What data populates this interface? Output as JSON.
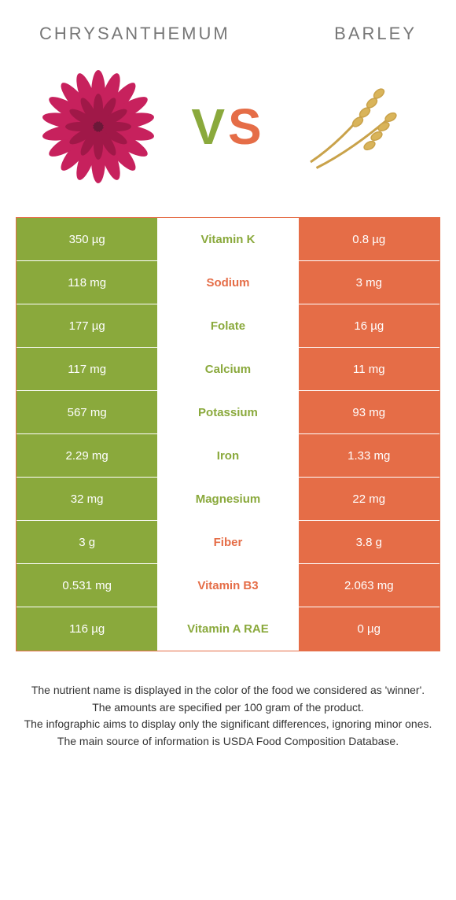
{
  "food_left": {
    "name": "Chrysanthemum"
  },
  "food_right": {
    "name": "Barley"
  },
  "vs_text": {
    "v": "V",
    "s": "S"
  },
  "colors": {
    "left": "#8aa93c",
    "right": "#e56d47",
    "title": "#777777",
    "bg": "#ffffff"
  },
  "rows": [
    {
      "nutrient": "Vitamin K",
      "left": "350 µg",
      "right": "0.8 µg",
      "winner": "left"
    },
    {
      "nutrient": "Sodium",
      "left": "118 mg",
      "right": "3 mg",
      "winner": "right"
    },
    {
      "nutrient": "Folate",
      "left": "177 µg",
      "right": "16 µg",
      "winner": "left"
    },
    {
      "nutrient": "Calcium",
      "left": "117 mg",
      "right": "11 mg",
      "winner": "left"
    },
    {
      "nutrient": "Potassium",
      "left": "567 mg",
      "right": "93 mg",
      "winner": "left"
    },
    {
      "nutrient": "Iron",
      "left": "2.29 mg",
      "right": "1.33 mg",
      "winner": "left"
    },
    {
      "nutrient": "Magnesium",
      "left": "32 mg",
      "right": "22 mg",
      "winner": "left"
    },
    {
      "nutrient": "Fiber",
      "left": "3 g",
      "right": "3.8 g",
      "winner": "right"
    },
    {
      "nutrient": "Vitamin B3",
      "left": "0.531 mg",
      "right": "2.063 mg",
      "winner": "right"
    },
    {
      "nutrient": "Vitamin A RAE",
      "left": "116 µg",
      "right": "0 µg",
      "winner": "left"
    }
  ],
  "footer": {
    "l1": "The nutrient name is displayed in the color of the food we considered as 'winner'.",
    "l2": "The amounts are specified per 100 gram of the product.",
    "l3": "The infographic aims to display only the significant differences, ignoring minor ones.",
    "l4": "The main source of information is USDA Food Composition Database."
  }
}
